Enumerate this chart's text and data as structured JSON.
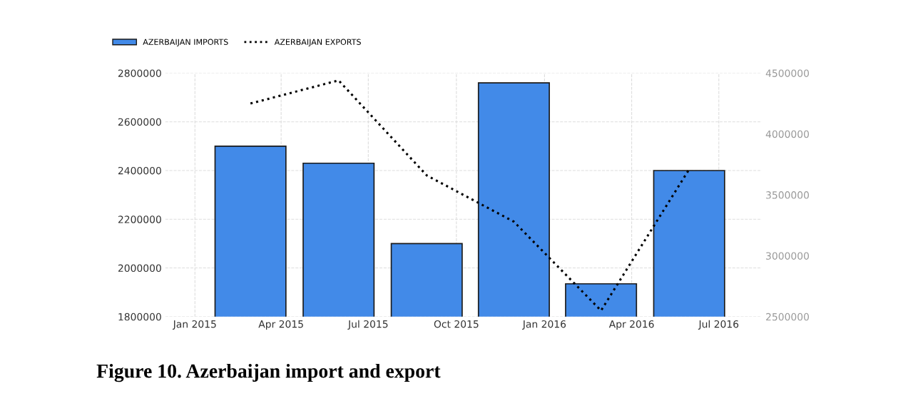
{
  "chart_data": {
    "type": "bar",
    "title": "Figure 10. Azerbaijan import and export",
    "x": [
      "2015-02-28",
      "2015-05-31",
      "2015-08-31",
      "2015-11-30",
      "2016-02-29",
      "2016-05-31"
    ],
    "series": [
      {
        "name": "AZERBAIJAN IMPORTS",
        "color": "#428ae8",
        "values": [
          2500000,
          2430000,
          2100000,
          2760000,
          1935000,
          2400000
        ]
      },
      {
        "name": "AZERBAIJAN EXPORTS",
        "type": "line",
        "axis": "y2",
        "color": "#000000",
        "line_style": "dotted",
        "values": [
          4250000,
          4440000,
          3660000,
          3280000,
          2550000,
          3710000
        ]
      }
    ],
    "xlim": [
      "2014-12-01",
      "2016-08-15"
    ],
    "xticks": [
      {
        "value": "2015-01-01",
        "label": "Jan 2015"
      },
      {
        "value": "2015-04-01",
        "label": "Apr 2015"
      },
      {
        "value": "2015-07-01",
        "label": "Jul 2015"
      },
      {
        "value": "2015-10-01",
        "label": "Oct 2015"
      },
      {
        "value": "2016-01-01",
        "label": "Jan 2016"
      },
      {
        "value": "2016-04-01",
        "label": "Apr 2016"
      },
      {
        "value": "2016-07-01",
        "label": "Jul 2016"
      }
    ],
    "ylim": [
      1800000,
      2800000
    ],
    "yticks": [
      1800000,
      2000000,
      2200000,
      2400000,
      2600000,
      2800000
    ],
    "y2lim": [
      2500000,
      4500000
    ],
    "y2ticks": [
      2500000,
      3000000,
      3500000,
      4000000,
      4500000
    ],
    "grid": true,
    "legend": "top left"
  }
}
